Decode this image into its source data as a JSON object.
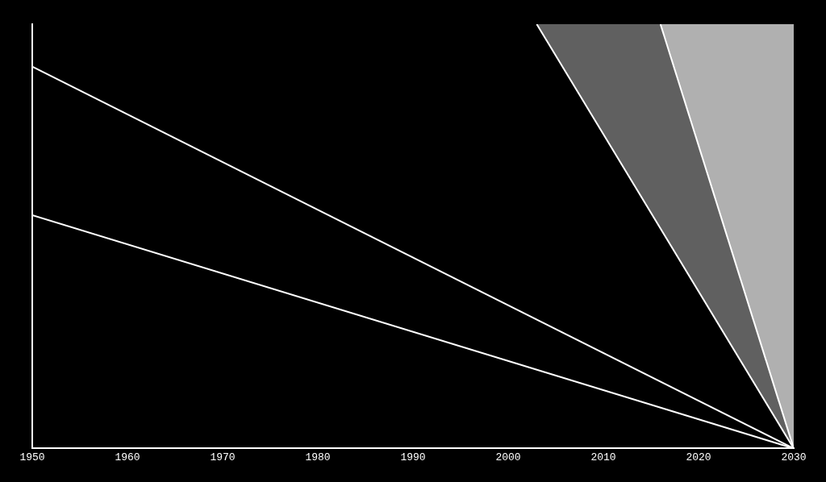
{
  "chart_data": {
    "type": "line",
    "xlim": [
      1950,
      2030
    ],
    "xticks": [
      1950,
      1960,
      1970,
      1980,
      1990,
      2000,
      2010,
      2020,
      2030
    ],
    "ylim": [
      0,
      100
    ],
    "tick_labels": "x",
    "grid": false,
    "series": [
      {
        "type": "area",
        "color": "#606060",
        "x": [
          2003,
          2016,
          2030
        ],
        "values": [
          100,
          100,
          0
        ]
      },
      {
        "type": "area",
        "color": "#b0b0b0",
        "x": [
          2016,
          2030,
          2030
        ],
        "values": [
          100,
          100,
          0
        ]
      },
      {
        "type": "line",
        "color": "#ffffff",
        "x": [
          2003,
          2030
        ],
        "values": [
          100,
          0
        ]
      },
      {
        "type": "line",
        "color": "#ffffff",
        "x": [
          2016,
          2030
        ],
        "values": [
          100,
          0
        ]
      },
      {
        "type": "line",
        "color": "#ffffff",
        "x": [
          1950,
          2030
        ],
        "values": [
          90,
          0
        ]
      },
      {
        "type": "line",
        "color": "#ffffff",
        "x": [
          1950,
          2030
        ],
        "values": [
          55,
          0
        ]
      }
    ]
  }
}
